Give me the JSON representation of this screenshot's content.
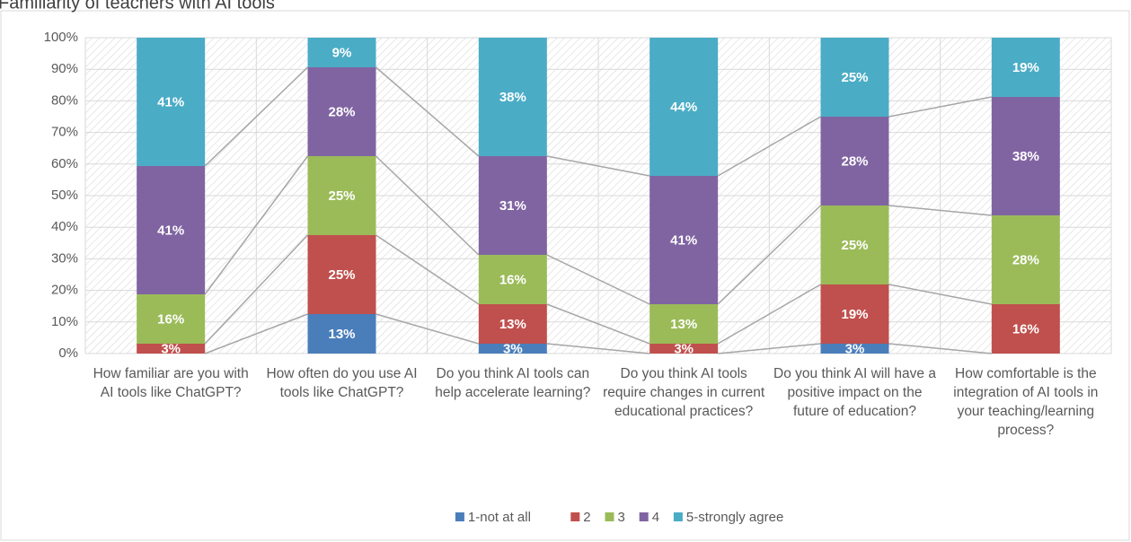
{
  "chart_data": {
    "type": "stacked_bar_100",
    "title": "Familiarity of teachers with AI tools",
    "categories": [
      "How familiar are you with AI tools like ChatGPT?",
      "How often do you use AI tools like ChatGPT?",
      "Do you think AI tools can help accelerate learning?",
      "Do you think AI tools require changes in current educational practices?",
      "Do you think AI will have a positive impact on the future of education?",
      "How comfortable is the integration of AI tools in your teaching/learning process?"
    ],
    "series": [
      {
        "name": "1-not at all",
        "color": "#4a7ebb",
        "values": [
          0,
          12.5,
          3.125,
          0,
          3.125,
          0
        ],
        "value_labels": [
          null,
          "13%",
          "3%",
          null,
          "3%",
          null
        ]
      },
      {
        "name": "2",
        "color": "#c0504d",
        "values": [
          3.125,
          25,
          12.5,
          3.125,
          18.75,
          15.625
        ],
        "value_labels": [
          "3%",
          "25%",
          "13%",
          "3%",
          "19%",
          "16%"
        ]
      },
      {
        "name": "3",
        "color": "#9bbb59",
        "values": [
          15.625,
          25,
          15.625,
          12.5,
          25,
          28.125
        ],
        "value_labels": [
          "16%",
          "25%",
          "16%",
          "13%",
          "25%",
          "28%"
        ]
      },
      {
        "name": "4",
        "color": "#8064a2",
        "values": [
          40.625,
          28.125,
          31.25,
          40.625,
          28.125,
          37.5
        ],
        "value_labels": [
          "41%",
          "28%",
          "31%",
          "41%",
          "28%",
          "38%"
        ]
      },
      {
        "name": "5-strongly agree",
        "color": "#4bacc6",
        "values": [
          40.625,
          9.375,
          37.5,
          43.75,
          25,
          18.75
        ],
        "value_labels": [
          "41%",
          "9%",
          "38%",
          "44%",
          "25%",
          "19%"
        ]
      }
    ],
    "ylim": [
      0,
      100
    ],
    "yticks": [
      {
        "value": 0,
        "label": "0%"
      },
      {
        "value": 10,
        "label": "10%"
      },
      {
        "value": 20,
        "label": "20%"
      },
      {
        "value": 30,
        "label": "30%"
      },
      {
        "value": 40,
        "label": "40%"
      },
      {
        "value": 50,
        "label": "50%"
      },
      {
        "value": 60,
        "label": "60%"
      },
      {
        "value": 70,
        "label": "70%"
      },
      {
        "value": 80,
        "label": "80%"
      },
      {
        "value": 90,
        "label": "90%"
      },
      {
        "value": 100,
        "label": "100%"
      }
    ],
    "grid": true,
    "series_lines": true,
    "legend": "bottom"
  }
}
